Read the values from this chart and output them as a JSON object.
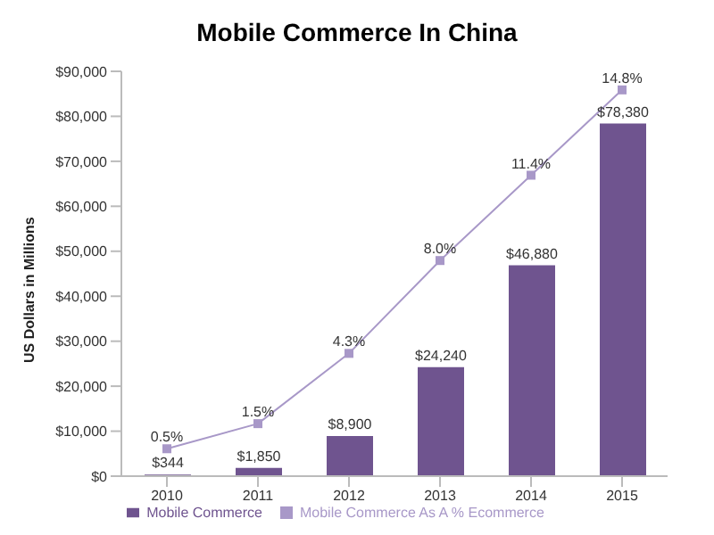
{
  "chart_data": {
    "type": "bar",
    "title": "Mobile Commerce In China",
    "ylabel": "US Dollars in Millions",
    "categories": [
      "2010",
      "2011",
      "2012",
      "2013",
      "2014",
      "2015"
    ],
    "series": [
      {
        "name": "Mobile Commerce",
        "color": "#6f548f",
        "values": [
          344,
          1850,
          8900,
          24240,
          46880,
          78380
        ],
        "value_labels": [
          "$344",
          "$1,850",
          "$8,900",
          "$24,240",
          "$46,880",
          "$78,380"
        ]
      },
      {
        "name": "Mobile Commerce As A % Ecommerce",
        "type": "line",
        "axis": "y2",
        "color": "#a898c8",
        "marker": "square",
        "values": [
          0.5,
          1.5,
          4.3,
          8.0,
          11.4,
          14.8
        ],
        "value_labels": [
          "0.5%",
          "1.5%",
          "4.3%",
          "8.0%",
          "11.4%",
          "14.8%"
        ]
      }
    ],
    "ylim": [
      0,
      90000
    ],
    "yticks": [
      {
        "value": 0,
        "label": "$0"
      },
      {
        "value": 10000,
        "label": "$10,000"
      },
      {
        "value": 20000,
        "label": "$20,000"
      },
      {
        "value": 30000,
        "label": "$30,000"
      },
      {
        "value": 40000,
        "label": "$40,000"
      },
      {
        "value": 50000,
        "label": "$50,000"
      },
      {
        "value": 60000,
        "label": "$60,000"
      },
      {
        "value": 70000,
        "label": "$70,000"
      },
      {
        "value": 80000,
        "label": "$80,000"
      },
      {
        "value": 90000,
        "label": "$90,000"
      }
    ],
    "grid": false,
    "legend": "bottom"
  }
}
